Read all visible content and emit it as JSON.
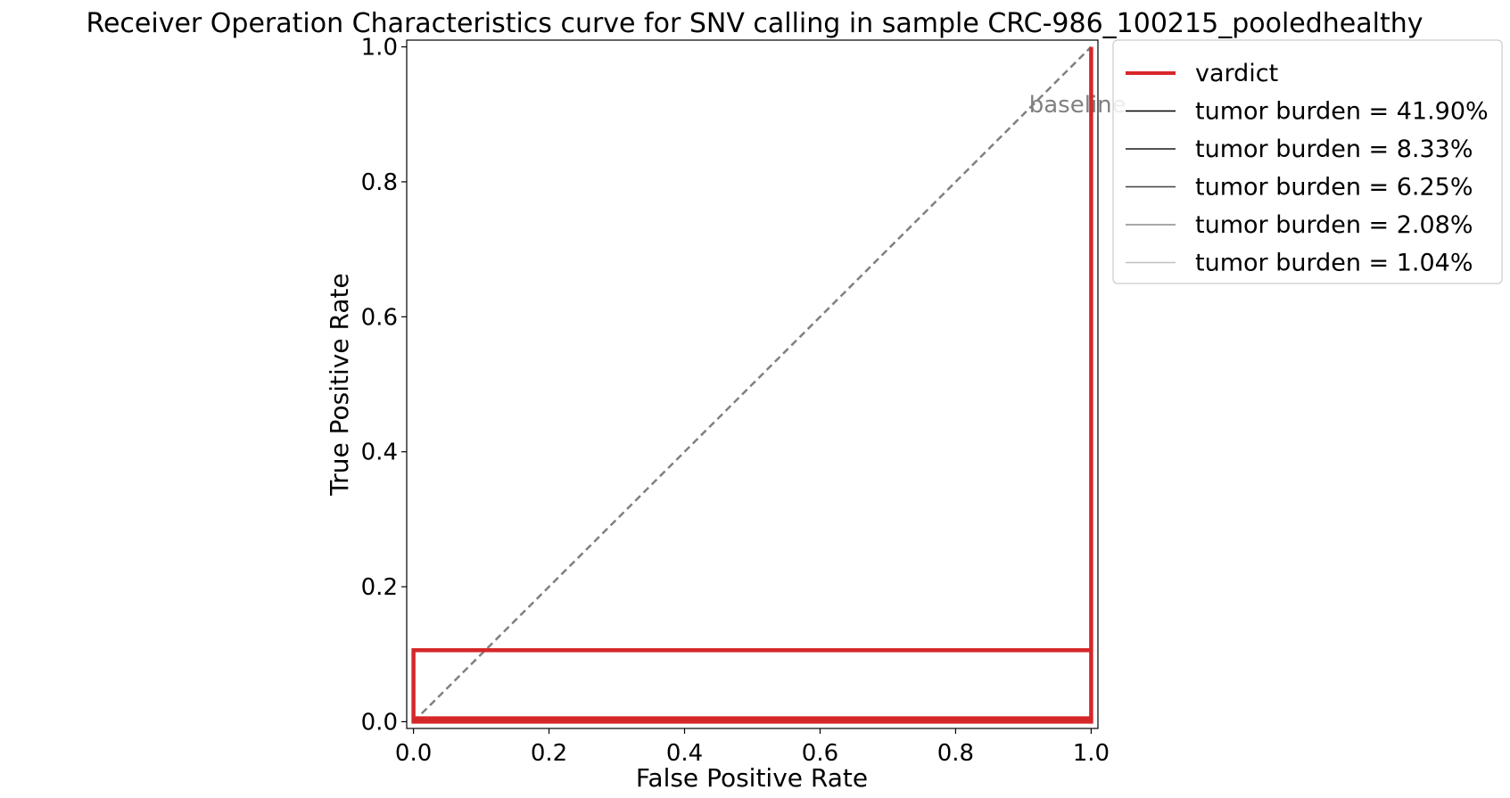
{
  "chart_data": {
    "type": "line",
    "title": "Receiver Operation Characteristics curve for SNV calling in sample CRC-986_100215_pooledhealthy",
    "xlabel": "False Positive Rate",
    "ylabel": "True Positive Rate",
    "xlim": [
      -0.01,
      1.01
    ],
    "ylim": [
      -0.01,
      1.01
    ],
    "xticks": [
      {
        "value": 0.0,
        "label": "0.0"
      },
      {
        "value": 0.2,
        "label": "0.2"
      },
      {
        "value": 0.4,
        "label": "0.4"
      },
      {
        "value": 0.6,
        "label": "0.6"
      },
      {
        "value": 0.8,
        "label": "0.8"
      },
      {
        "value": 1.0,
        "label": "1.0"
      }
    ],
    "yticks": [
      {
        "value": 0.0,
        "label": "0.0"
      },
      {
        "value": 0.2,
        "label": "0.2"
      },
      {
        "value": 0.4,
        "label": "0.4"
      },
      {
        "value": 0.6,
        "label": "0.6"
      },
      {
        "value": 0.8,
        "label": "0.8"
      },
      {
        "value": 1.0,
        "label": "1.0"
      }
    ],
    "grid": false,
    "legend_position": "outside-right",
    "series": [
      {
        "name": "vardict",
        "color": "#d62728",
        "x": [
          0.029,
          0.0,
          0.0,
          1.0,
          1.0,
          0.0,
          0.0,
          1.0,
          1.0
        ],
        "y": [
          0.003,
          0.003,
          0.106,
          0.106,
          0.005,
          0.005,
          0.0,
          0.0,
          1.0
        ]
      }
    ],
    "baseline": {
      "label": "baseline",
      "color": "#808080",
      "x": [
        0,
        1
      ],
      "y": [
        0,
        1
      ],
      "label_at": [
        0.98,
        0.915
      ]
    },
    "legend": [
      {
        "label": "vardict",
        "color": "#d62728",
        "width": 4
      },
      {
        "label": "tumor burden = 41.90%",
        "color": "#000000",
        "width": 1.5
      },
      {
        "label": "tumor burden = 8.33%",
        "color": "#1a1a1a",
        "width": 1.5
      },
      {
        "label": "tumor burden = 6.25%",
        "color": "#404040",
        "width": 1.5
      },
      {
        "label": "tumor burden = 2.08%",
        "color": "#8c8c8c",
        "width": 1.5
      },
      {
        "label": "tumor burden = 1.04%",
        "color": "#c0c0c0",
        "width": 1.5
      }
    ]
  }
}
